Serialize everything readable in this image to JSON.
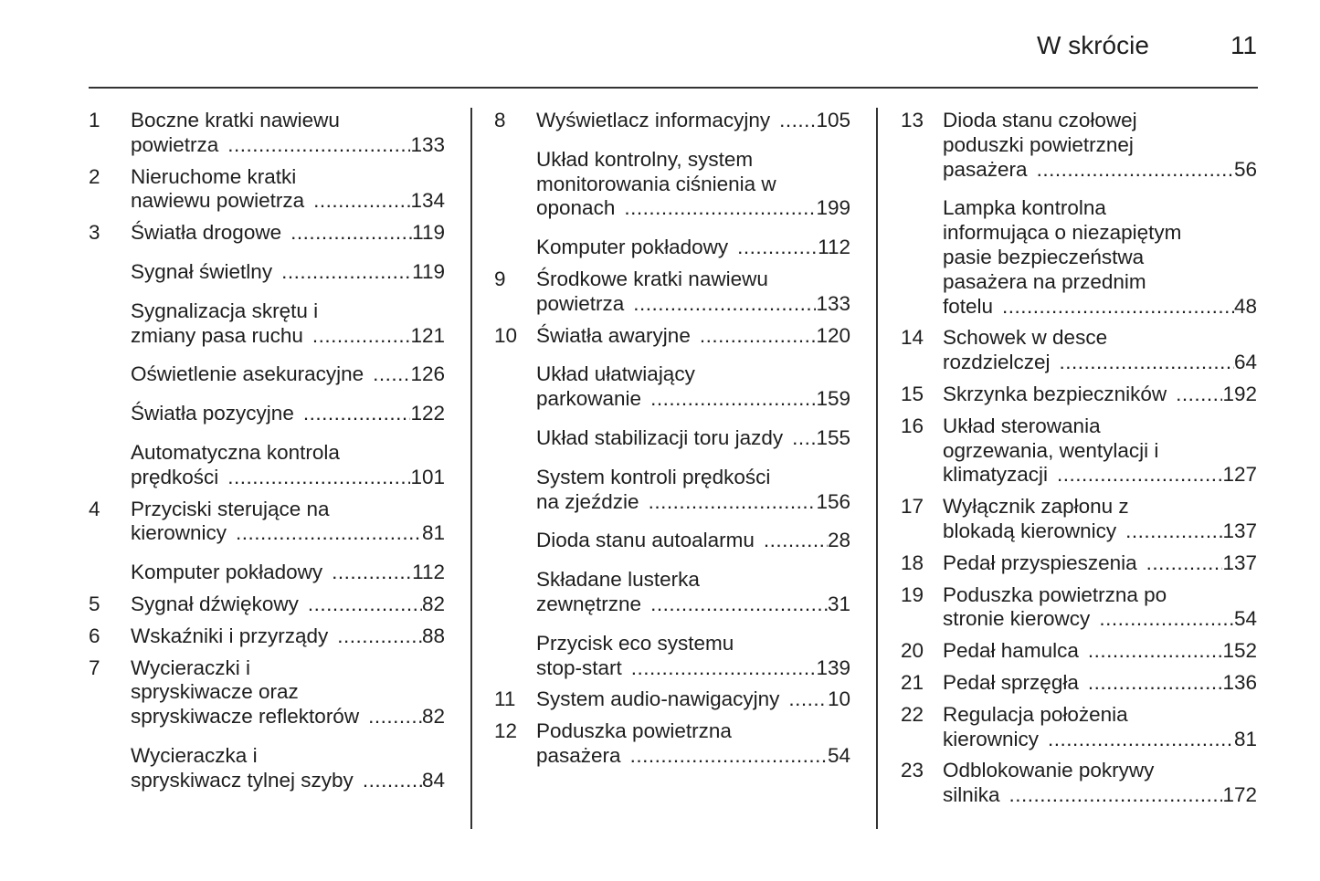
{
  "header": {
    "title": "W skrócie",
    "page_number": "11"
  },
  "columns": [
    [
      {
        "num": "1",
        "lines": [
          "Boczne kratki nawiewu",
          "powietrza"
        ],
        "page": "133"
      },
      {
        "num": "2",
        "lines": [
          "Nieruchome kratki",
          "nawiewu powietrza"
        ],
        "page": "134"
      },
      {
        "num": "3",
        "lines": [
          "Światła drogowe"
        ],
        "page": "119"
      },
      {
        "num": "",
        "lines": [
          "Sygnał świetlny"
        ],
        "page": "119"
      },
      {
        "num": "",
        "lines": [
          "Sygnalizacja skrętu i",
          "zmiany pasa ruchu"
        ],
        "page": "121"
      },
      {
        "num": "",
        "lines": [
          "Oświetlenie asekuracyjne"
        ],
        "page": "126"
      },
      {
        "num": "",
        "lines": [
          "Światła pozycyjne"
        ],
        "page": "122"
      },
      {
        "num": "",
        "lines": [
          "Automatyczna kontrola",
          "prędkości"
        ],
        "page": "101"
      },
      {
        "num": "4",
        "lines": [
          "Przyciski sterujące na",
          "kierownicy"
        ],
        "page": "81"
      },
      {
        "num": "",
        "lines": [
          "Komputer pokładowy"
        ],
        "page": "112"
      },
      {
        "num": "5",
        "lines": [
          "Sygnał dźwiękowy"
        ],
        "page": "82"
      },
      {
        "num": "6",
        "lines": [
          "Wskaźniki i przyrządy"
        ],
        "page": "88"
      },
      {
        "num": "7",
        "lines": [
          "Wycieraczki i",
          "spryskiwacze oraz",
          "spryskiwacze reflektorów"
        ],
        "page": "82"
      },
      {
        "num": "",
        "lines": [
          "Wycieraczka i",
          "spryskiwacz tylnej szyby"
        ],
        "page": "84"
      }
    ],
    [
      {
        "num": "8",
        "lines": [
          "Wyświetlacz informacyjny"
        ],
        "page": "105"
      },
      {
        "num": "",
        "lines": [
          "Układ kontrolny, system",
          "monitorowania ciśnienia w",
          "oponach"
        ],
        "page": "199"
      },
      {
        "num": "",
        "lines": [
          "Komputer pokładowy"
        ],
        "page": "112"
      },
      {
        "num": "9",
        "lines": [
          "Środkowe kratki nawiewu",
          "powietrza"
        ],
        "page": "133"
      },
      {
        "num": "10",
        "lines": [
          "Światła awaryjne"
        ],
        "page": "120"
      },
      {
        "num": "",
        "lines": [
          "Układ ułatwiający",
          "parkowanie"
        ],
        "page": "159"
      },
      {
        "num": "",
        "lines": [
          "Układ stabilizacji toru jazdy"
        ],
        "page": "155"
      },
      {
        "num": "",
        "lines": [
          "System kontroli prędkości",
          "na zjeździe"
        ],
        "page": "156"
      },
      {
        "num": "",
        "lines": [
          "Dioda stanu autoalarmu"
        ],
        "page": "28"
      },
      {
        "num": "",
        "lines": [
          "Składane lusterka",
          "zewnętrzne"
        ],
        "page": "31"
      },
      {
        "num": "",
        "lines": [
          "Przycisk eco systemu",
          "stop-start"
        ],
        "page": "139"
      },
      {
        "num": "11",
        "lines": [
          "System audio-nawigacyjny"
        ],
        "page": "10"
      },
      {
        "num": "12",
        "lines": [
          "Poduszka powietrzna",
          "pasażera"
        ],
        "page": "54"
      }
    ],
    [
      {
        "num": "13",
        "lines": [
          "Dioda stanu czołowej",
          "poduszki powietrznej",
          "pasażera"
        ],
        "page": "56"
      },
      {
        "num": "",
        "lines": [
          "Lampka kontrolna",
          "informująca o niezapiętym",
          "pasie bezpieczeństwa",
          "pasażera na przednim",
          "fotelu"
        ],
        "page": "48"
      },
      {
        "num": "14",
        "lines": [
          "Schowek w desce",
          "rozdzielczej"
        ],
        "page": "64"
      },
      {
        "num": "15",
        "lines": [
          "Skrzynka bezpieczników"
        ],
        "page": "192"
      },
      {
        "num": "16",
        "lines": [
          "Układ sterowania",
          "ogrzewania, wentylacji i",
          "klimatyzacji"
        ],
        "page": "127"
      },
      {
        "num": "17",
        "lines": [
          "Wyłącznik zapłonu z",
          "blokadą kierownicy"
        ],
        "page": "137"
      },
      {
        "num": "18",
        "lines": [
          "Pedał przyspieszenia"
        ],
        "page": "137"
      },
      {
        "num": "19",
        "lines": [
          "Poduszka powietrzna po",
          "stronie kierowcy"
        ],
        "page": "54"
      },
      {
        "num": "20",
        "lines": [
          "Pedał hamulca"
        ],
        "page": "152"
      },
      {
        "num": "21",
        "lines": [
          "Pedał sprzęgła"
        ],
        "page": "136"
      },
      {
        "num": "22",
        "lines": [
          "Regulacja położenia",
          "kierownicy"
        ],
        "page": "81"
      },
      {
        "num": "23",
        "lines": [
          "Odblokowanie pokrywy",
          "silnika"
        ],
        "page": "172"
      }
    ]
  ]
}
